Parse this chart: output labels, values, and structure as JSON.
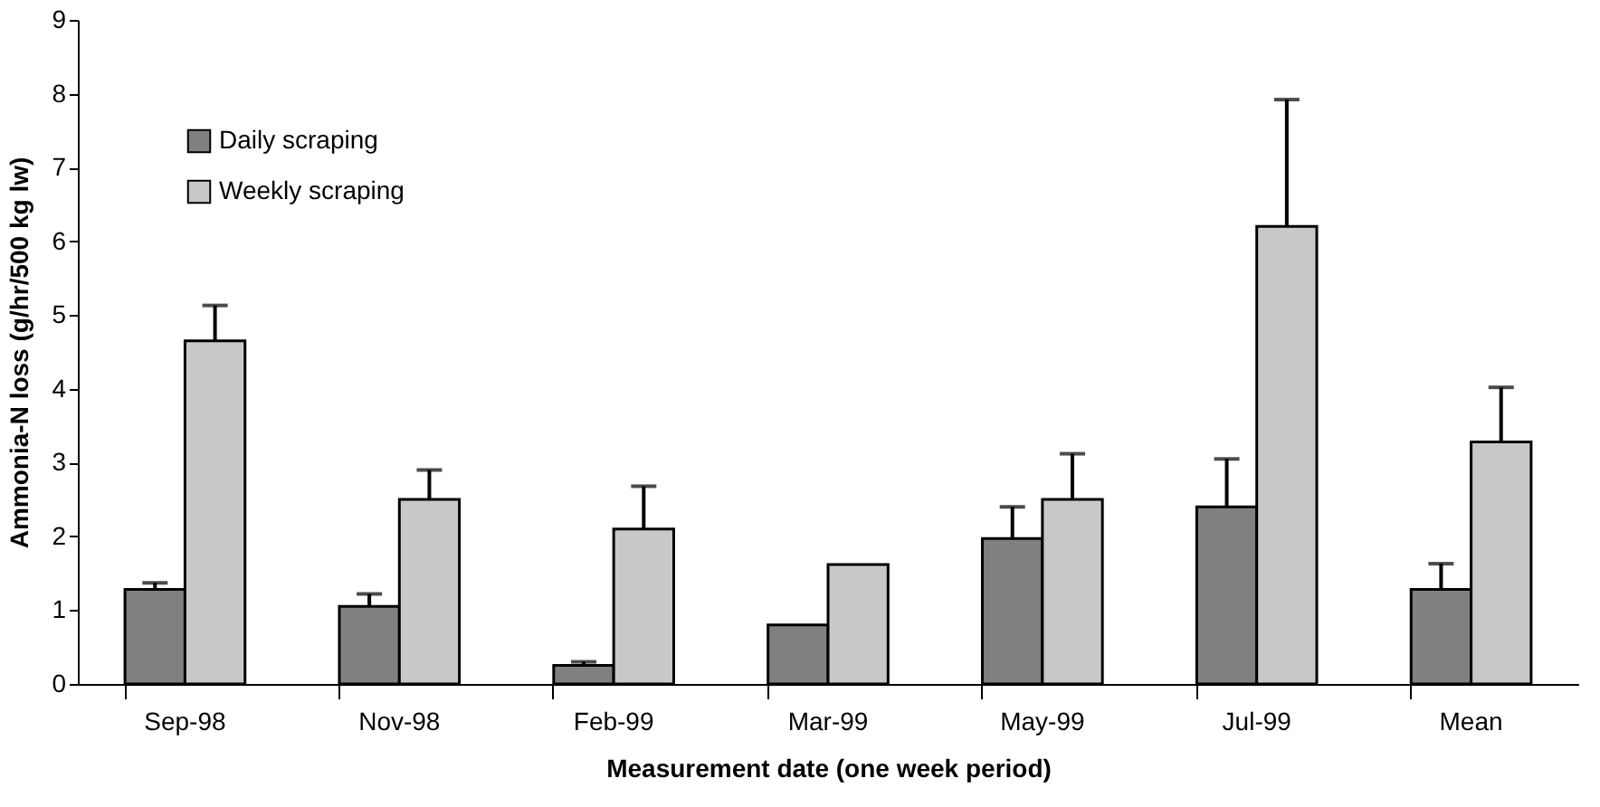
{
  "chart_data": {
    "type": "bar",
    "xlabel": "Measurement date (one week period)",
    "ylabel": "Ammonia-N loss (g/hr/500 kg lw)",
    "categories": [
      "Sep-98",
      "Nov-98",
      "Feb-99",
      "Mar-99",
      "May-99",
      "Jul-99",
      "Mean"
    ],
    "series": [
      {
        "name": "Daily scraping",
        "color": "#808080",
        "values": [
          1.28,
          1.05,
          0.25,
          0.8,
          1.97,
          2.4,
          1.28
        ],
        "errors": [
          [
            1.28,
            1.37
          ],
          [
            1.05,
            1.22
          ],
          [
            0.25,
            0.3
          ],
          null,
          [
            1.97,
            2.4
          ],
          [
            2.4,
            3.05
          ],
          [
            1.28,
            1.63
          ]
        ]
      },
      {
        "name": "Weekly scraping",
        "color": "#c8c8c8",
        "values": [
          4.65,
          2.5,
          2.1,
          1.62,
          2.5,
          6.2,
          3.28
        ],
        "errors": [
          [
            4.65,
            5.13
          ],
          [
            2.5,
            2.9
          ],
          [
            2.1,
            2.68
          ],
          null,
          [
            2.5,
            3.12
          ],
          [
            6.2,
            7.92
          ],
          [
            3.28,
            4.02
          ]
        ]
      }
    ],
    "ylim": [
      0,
      9
    ],
    "yticks": [
      0,
      1,
      2,
      3,
      4,
      5,
      6,
      7,
      8,
      9
    ],
    "grid": false,
    "legend": "top left"
  }
}
